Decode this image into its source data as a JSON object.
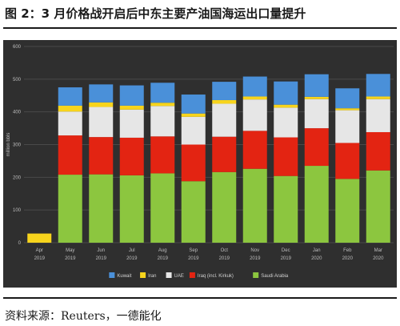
{
  "header": {
    "title": "图 2：3 月价格战开启后中东主要产油国海运出口量提升"
  },
  "footer": {
    "source": "资料来源：Reuters，一德能化"
  },
  "chart_data": {
    "type": "bar",
    "stacked": true,
    "title": "",
    "xlabel": "",
    "ylabel": "million bbls",
    "ylim": [
      0,
      600
    ],
    "yticks": [
      0,
      100,
      200,
      300,
      400,
      500,
      600
    ],
    "grid": true,
    "legend_position": "bottom",
    "background": "#2f2f2f",
    "categories": [
      [
        "Apr",
        "2019"
      ],
      [
        "May",
        "2019"
      ],
      [
        "Jun",
        "2019"
      ],
      [
        "Jul",
        "2019"
      ],
      [
        "Aug",
        "2019"
      ],
      [
        "Sep",
        "2019"
      ],
      [
        "Oct",
        "2019"
      ],
      [
        "Nov",
        "2019"
      ],
      [
        "Dec",
        "2019"
      ],
      [
        "Jan",
        "2020"
      ],
      [
        "Feb",
        "2020"
      ],
      [
        "Mar",
        "2020"
      ]
    ],
    "series": [
      {
        "name": "Saudi Arabia",
        "color": "#8cc63f",
        "values": [
          0,
          208,
          209,
          206,
          212,
          188,
          216,
          226,
          204,
          235,
          195,
          221
        ]
      },
      {
        "name": "Iraq (incl. Kirkuk)",
        "color": "#e32412",
        "values": [
          0,
          120,
          114,
          115,
          113,
          112,
          108,
          116,
          118,
          115,
          110,
          117
        ]
      },
      {
        "name": "UAE",
        "color": "#e6e6e6",
        "values": [
          0,
          73,
          92,
          86,
          93,
          85,
          101,
          96,
          91,
          89,
          100,
          101
        ]
      },
      {
        "name": "Iran",
        "color": "#f7d41c",
        "values": [
          28,
          18,
          14,
          12,
          10,
          10,
          11,
          9,
          9,
          7,
          6,
          8
        ]
      },
      {
        "name": "Kuwait",
        "color": "#4a90d9",
        "values": [
          0,
          56,
          55,
          62,
          61,
          58,
          56,
          61,
          71,
          69,
          61,
          69
        ]
      }
    ]
  }
}
